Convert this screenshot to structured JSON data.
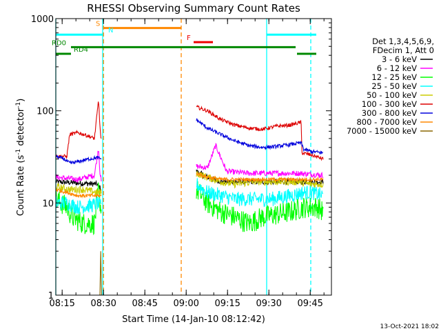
{
  "chart_data": {
    "type": "line",
    "title": "RHESSI Observing Summary Count Rates",
    "xlabel": "Start Time (14-Jan-10 08:12:42)",
    "ylabel_main": "Count Rate (s",
    "ylabel_sup1": "-1",
    "ylabel_mid": " detector",
    "ylabel_sup2": "-1",
    "ylabel_end": ")",
    "footer": "13-Oct-2021 18:02",
    "x_axis": {
      "unit": "minutes since 08:12:42",
      "range": [
        0,
        100
      ]
    },
    "y_axis": {
      "scale": "log",
      "range": [
        1,
        1000
      ]
    },
    "x_ticks": [
      {
        "label": "08:15",
        "x": 2.3
      },
      {
        "label": "08:30",
        "x": 17.3
      },
      {
        "label": "08:45",
        "x": 32.3
      },
      {
        "label": "09:00",
        "x": 47.3
      },
      {
        "label": "09:15",
        "x": 62.3
      },
      {
        "label": "09:30",
        "x": 77.3
      },
      {
        "label": "09:45",
        "x": 92.3
      }
    ],
    "y_ticks": [
      {
        "label": "1",
        "y": 1
      },
      {
        "label": "10",
        "y": 10
      },
      {
        "label": "100",
        "y": 100
      },
      {
        "label": "1000",
        "y": 1000
      }
    ],
    "legend": {
      "title_lines": [
        "Det 1,3,4,5,6,9,",
        "FDecim 1, Att 0"
      ],
      "items": [
        {
          "label": "3 - 6 keV",
          "color": "#000000"
        },
        {
          "label": "6 - 12 keV",
          "color": "#ff00ff"
        },
        {
          "label": "12 - 25 keV",
          "color": "#00ff00"
        },
        {
          "label": "25 - 50 keV",
          "color": "#00ffff"
        },
        {
          "label": "50 - 100 keV",
          "color": "#cccc00"
        },
        {
          "label": "100 - 300 keV",
          "color": "#dd0000"
        },
        {
          "label": "300 - 800 keV",
          "color": "#0000dd"
        },
        {
          "label": "800 - 7000 keV",
          "color": "#ff8800"
        },
        {
          "label": "7000 - 15000 keV",
          "color": "#886600"
        }
      ]
    },
    "series": [
      {
        "name": "3 - 6 keV",
        "color": "#000000",
        "noise": 0.03,
        "segments": [
          [
            [
              0,
              17
            ],
            [
              15,
              16
            ],
            [
              16.5,
              14
            ]
          ],
          [
            [
              51,
              22
            ],
            [
              55,
              19
            ],
            [
              60,
              17
            ],
            [
              70,
              17
            ],
            [
              80,
              17
            ],
            [
              90,
              17
            ],
            [
              97,
              17
            ]
          ]
        ]
      },
      {
        "name": "6 - 12 keV",
        "color": "#ff00ff",
        "noise": 0.03,
        "segments": [
          [
            [
              0,
              19
            ],
            [
              8,
              18
            ],
            [
              14,
              20
            ],
            [
              15.5,
              40
            ],
            [
              16,
              22
            ],
            [
              16.5,
              17
            ]
          ],
          [
            [
              51,
              25
            ],
            [
              55,
              24
            ],
            [
              58,
              42
            ],
            [
              62,
              22
            ],
            [
              70,
              21
            ],
            [
              80,
              21
            ],
            [
              88,
              21
            ],
            [
              97,
              20
            ]
          ]
        ]
      },
      {
        "name": "12 - 25 keV",
        "color": "#00ff00",
        "noise": 0.12,
        "segments": [
          [
            [
              0,
              11
            ],
            [
              4,
              9
            ],
            [
              6,
              7
            ],
            [
              10,
              6
            ],
            [
              14,
              6
            ],
            [
              15.5,
              14
            ],
            [
              16.5,
              8
            ]
          ],
          [
            [
              51,
              14
            ],
            [
              55,
              10
            ],
            [
              60,
              8
            ],
            [
              65,
              7
            ],
            [
              70,
              6
            ],
            [
              75,
              7
            ],
            [
              80,
              7.5
            ],
            [
              85,
              8
            ],
            [
              90,
              9
            ],
            [
              95,
              9
            ],
            [
              97,
              8
            ]
          ]
        ]
      },
      {
        "name": "25 - 50 keV",
        "color": "#00ffff",
        "noise": 0.08,
        "segments": [
          [
            [
              0,
              10
            ],
            [
              4,
              10
            ],
            [
              8,
              9
            ],
            [
              14,
              9.5
            ],
            [
              15,
              10
            ],
            [
              16.5,
              9
            ]
          ],
          [
            [
              51,
              16
            ],
            [
              55,
              13
            ],
            [
              60,
              12
            ],
            [
              65,
              11
            ],
            [
              70,
              11
            ],
            [
              78,
              11
            ],
            [
              85,
              12
            ],
            [
              90,
              13
            ],
            [
              93,
              13
            ],
            [
              97,
              12
            ]
          ]
        ]
      },
      {
        "name": "50 - 100 keV",
        "color": "#cccc00",
        "noise": 0.04,
        "segments": [
          [
            [
              0,
              15
            ],
            [
              5,
              14
            ],
            [
              10,
              14
            ],
            [
              15,
              13
            ],
            [
              16.5,
              13
            ]
          ],
          [
            [
              51,
              21
            ],
            [
              55,
              19
            ],
            [
              60,
              17
            ],
            [
              65,
              16
            ],
            [
              72,
              17
            ],
            [
              80,
              17
            ],
            [
              88,
              17
            ],
            [
              92,
              16
            ],
            [
              97,
              16
            ]
          ]
        ]
      },
      {
        "name": "100 - 300 keV",
        "color": "#dd0000",
        "noise": 0.02,
        "segments": [
          [
            [
              0,
              32
            ],
            [
              4,
              32
            ],
            [
              5,
              55
            ],
            [
              8,
              58
            ],
            [
              12,
              53
            ],
            [
              14,
              50
            ],
            [
              15.5,
              130
            ],
            [
              16.2,
              55
            ],
            [
              16.5,
              50
            ]
          ],
          [
            [
              51,
              110
            ],
            [
              55,
              100
            ],
            [
              60,
              80
            ],
            [
              65,
              70
            ],
            [
              70,
              65
            ],
            [
              75,
              63
            ],
            [
              80,
              68
            ],
            [
              85,
              70
            ],
            [
              89,
              75
            ],
            [
              89.3,
              35
            ],
            [
              93,
              33
            ],
            [
              97,
              30
            ]
          ]
        ]
      },
      {
        "name": "300 - 800 keV",
        "color": "#0000dd",
        "noise": 0.02,
        "segments": [
          [
            [
              0,
              32
            ],
            [
              3,
              30
            ],
            [
              5,
              27
            ],
            [
              8,
              28
            ],
            [
              12,
              30
            ],
            [
              15,
              31
            ],
            [
              16.5,
              30
            ]
          ],
          [
            [
              51,
              80
            ],
            [
              55,
              65
            ],
            [
              60,
              55
            ],
            [
              65,
              47
            ],
            [
              70,
              42
            ],
            [
              75,
              40
            ],
            [
              80,
              41
            ],
            [
              85,
              43
            ],
            [
              89,
              45
            ],
            [
              90,
              38
            ],
            [
              93,
              36
            ],
            [
              97,
              35
            ]
          ]
        ]
      },
      {
        "name": "800 - 7000 keV",
        "color": "#ff8800",
        "noise": 0.02,
        "segments": [
          [
            [
              0,
              14
            ],
            [
              4,
              13
            ],
            [
              8,
              12
            ],
            [
              12,
              12
            ],
            [
              15,
              12
            ],
            [
              16.5,
              12
            ]
          ],
          [
            [
              51,
              21
            ],
            [
              55,
              19
            ],
            [
              60,
              18
            ],
            [
              65,
              18
            ],
            [
              70,
              18
            ],
            [
              80,
              18
            ],
            [
              88,
              18
            ],
            [
              97,
              18
            ]
          ]
        ]
      },
      {
        "name": "7000 - 15000 keV",
        "color": "#886600",
        "noise": 0.0,
        "segments": [
          [
            [
              16,
              1
            ],
            [
              16.3,
              3
            ],
            [
              16.6,
              1
            ]
          ]
        ]
      }
    ],
    "vertical_lines": [
      {
        "x": 0,
        "color": "#00ffff",
        "style": "solid"
      },
      {
        "x": 17,
        "color": "#00ffff",
        "style": "solid"
      },
      {
        "x": 17.3,
        "color": "#ff8800",
        "style": "dashed"
      },
      {
        "x": 45.5,
        "color": "#ff8800",
        "style": "dashed"
      },
      {
        "x": 76.5,
        "color": "#00ffff",
        "style": "solid"
      },
      {
        "x": 92.5,
        "color": "#00ffff",
        "style": "dashed"
      }
    ],
    "flag_bars": [
      {
        "id": "S",
        "color": "#ff8800",
        "y": 790,
        "x0": 17.3,
        "x1": 45.5,
        "label": "S",
        "label_x": 14.5
      },
      {
        "id": "N",
        "color": "#00ffff",
        "y": 670,
        "x0": 0,
        "x1": 17,
        "label": "N",
        "label_x": 19
      },
      {
        "id": "N2",
        "color": "#00ffff",
        "y": 670,
        "x0": 76.5,
        "x1": 94.5,
        "label": "",
        "label_x": 0
      },
      {
        "id": "F",
        "color": "#ee0000",
        "y": 555,
        "x0": 50,
        "x1": 57,
        "label": "F",
        "label_x": 47.5
      },
      {
        "id": "RD0",
        "color": "#008800",
        "y": 490,
        "x0": 5.5,
        "x1": 87,
        "label": "RD0",
        "label_x": -1.5
      },
      {
        "id": "RD4",
        "color": "#008800",
        "y": 415,
        "x0": 0,
        "x1": 5.5,
        "label": "RD4",
        "label_x": 6.5
      },
      {
        "id": "RD4b",
        "color": "#008800",
        "y": 415,
        "x0": 87.5,
        "x1": 94.5,
        "label": "",
        "label_x": 0
      }
    ]
  }
}
